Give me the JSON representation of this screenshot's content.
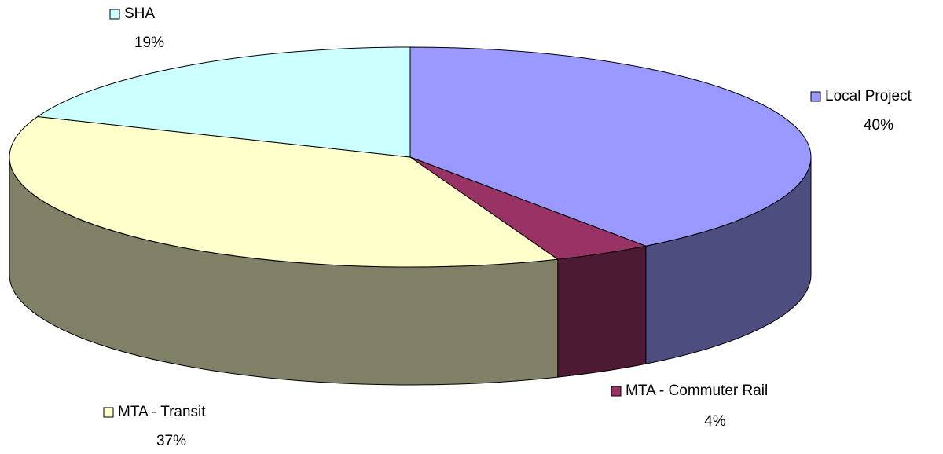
{
  "chart_data": {
    "type": "pie",
    "categories": [
      "Local Project",
      "MTA - Commuter Rail",
      "MTA - Transit",
      "SHA"
    ],
    "values": [
      40,
      4,
      37,
      19
    ],
    "value_labels": [
      "40%",
      "4%",
      "37%",
      "19%"
    ],
    "colors": [
      "#9999ff",
      "#993366",
      "#ffffcc",
      "#ccffff"
    ]
  }
}
